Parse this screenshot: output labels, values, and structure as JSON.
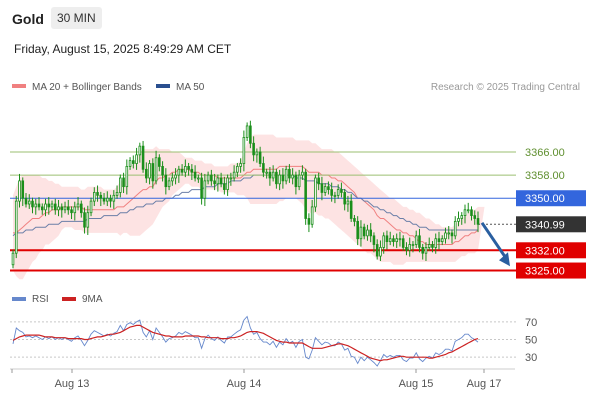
{
  "header": {
    "symbol": "Gold",
    "interval": "30 MIN",
    "datetime": "Friday, August 15, 2025 8:49:29 AM CET"
  },
  "legend": {
    "ma20": "MA 20 + Bollinger Bands",
    "ma50": "MA 50",
    "credit": "Research © 2025 Trading Central",
    "rsi": "RSI",
    "rsi_ma": "9MA"
  },
  "colors": {
    "bollinger_fill": "#fde3e3",
    "ma20": "#f08080",
    "ma50": "#6b7fa8",
    "resistance": "#9bbf72",
    "pivot": "#3366dd",
    "support": "#e00000",
    "candle": "#1b8f1b",
    "last_price_box": "#333333",
    "rsi": "#6688cc",
    "rsi_ma": "#cc2222",
    "arrow": "#2a5fa0"
  },
  "chart_data": [
    {
      "type": "candlestick",
      "title": "",
      "x_ticks": [
        "Aug 13",
        "Aug 14",
        "Aug 15",
        "Aug 17"
      ],
      "ylim": [
        3320,
        3385
      ],
      "levels": [
        {
          "name": "resistance-2",
          "value": 3366.0,
          "label": "3366.00",
          "style": "resistance"
        },
        {
          "name": "resistance-1",
          "value": 3358.0,
          "label": "3358.00",
          "style": "resistance"
        },
        {
          "name": "pivot",
          "value": 3350.0,
          "label": "3350.00",
          "style": "pivot"
        },
        {
          "name": "support-1",
          "value": 3332.0,
          "label": "3332.00",
          "style": "support"
        },
        {
          "name": "support-2",
          "value": 3325.0,
          "label": "3325.00",
          "style": "support"
        }
      ],
      "last_price": {
        "value": 3340.99,
        "label": "3340.99"
      },
      "forecast_arrow": {
        "from": 3341.5,
        "to": 3326.5
      },
      "closes": [
        3331,
        3349,
        3356,
        3350,
        3348,
        3349,
        3347,
        3348,
        3347,
        3346,
        3348,
        3347,
        3348,
        3346,
        3347,
        3346,
        3347,
        3346,
        3345,
        3347,
        3348,
        3345,
        3340,
        3345,
        3349,
        3352,
        3351,
        3350,
        3349,
        3350,
        3349,
        3351,
        3352,
        3357,
        3354,
        3361,
        3363,
        3362,
        3365,
        3368,
        3360,
        3357,
        3362,
        3356,
        3364,
        3361,
        3358,
        3354,
        3356,
        3357,
        3358,
        3360,
        3359,
        3361,
        3360,
        3359,
        3357,
        3357,
        3350,
        3356,
        3358,
        3356,
        3355,
        3357,
        3355,
        3353,
        3357,
        3357,
        3359,
        3361,
        3362,
        3371,
        3375,
        3369,
        3365,
        3366,
        3362,
        3359,
        3359,
        3357,
        3359,
        3355,
        3358,
        3356,
        3360,
        3357,
        3358,
        3354,
        3358,
        3359,
        3343,
        3341,
        3347,
        3357,
        3355,
        3352,
        3354,
        3353,
        3351,
        3351,
        3353,
        3352,
        3348,
        3349,
        3343,
        3342,
        3336,
        3340,
        3337,
        3339,
        3337,
        3334,
        3330,
        3333,
        3337,
        3335,
        3336,
        3335,
        3336,
        3336,
        3333,
        3332,
        3334,
        3334,
        3337,
        3333,
        3331,
        3333,
        3334,
        3333,
        3336,
        3335,
        3336,
        3338,
        3338,
        3337,
        3342,
        3343,
        3344,
        3346,
        3346,
        3344,
        3343,
        3341
      ],
      "ma20": [
        3338,
        3338,
        3339,
        3340,
        3341,
        3342,
        3343,
        3343,
        3343,
        3344,
        3345,
        3345,
        3346,
        3346,
        3346,
        3347,
        3347,
        3347,
        3347,
        3347,
        3347,
        3347,
        3346,
        3346,
        3346,
        3346,
        3346,
        3346,
        3346,
        3346,
        3346,
        3346,
        3347,
        3347,
        3347,
        3348,
        3349,
        3350,
        3351,
        3352,
        3353,
        3353,
        3354,
        3354,
        3356,
        3357,
        3357,
        3358,
        3358,
        3359,
        3359,
        3360,
        3360,
        3360,
        3360,
        3359,
        3359,
        3359,
        3358,
        3358,
        3358,
        3358,
        3358,
        3357,
        3357,
        3357,
        3357,
        3357,
        3357,
        3357,
        3357,
        3358,
        3359,
        3359,
        3360,
        3360,
        3360,
        3360,
        3360,
        3360,
        3360,
        3360,
        3361,
        3361,
        3361,
        3361,
        3361,
        3361,
        3361,
        3361,
        3360,
        3359,
        3359,
        3359,
        3359,
        3358,
        3358,
        3358,
        3357,
        3357,
        3356,
        3356,
        3355,
        3354,
        3353,
        3352,
        3350,
        3350,
        3349,
        3348,
        3347,
        3346,
        3344,
        3343,
        3343,
        3342,
        3341,
        3340,
        3339,
        3339,
        3338,
        3338,
        3337,
        3337,
        3336,
        3335,
        3335,
        3334,
        3334,
        3334,
        3334,
        3334,
        3334,
        3334,
        3334,
        3334,
        3335,
        3335,
        3336,
        3337,
        3337,
        3338,
        3338,
        3339
      ],
      "bb_upper": [
        3351,
        3354,
        3357,
        3358,
        3358,
        3358,
        3358,
        3358,
        3358,
        3357,
        3357,
        3356,
        3356,
        3355,
        3355,
        3354,
        3354,
        3354,
        3354,
        3354,
        3354,
        3353,
        3353,
        3354,
        3354,
        3354,
        3354,
        3354,
        3353,
        3353,
        3353,
        3353,
        3354,
        3356,
        3356,
        3359,
        3361,
        3362,
        3364,
        3366,
        3367,
        3367,
        3367,
        3367,
        3368,
        3367,
        3367,
        3367,
        3367,
        3366,
        3366,
        3366,
        3365,
        3364,
        3364,
        3364,
        3363,
        3363,
        3363,
        3362,
        3362,
        3362,
        3361,
        3361,
        3361,
        3361,
        3361,
        3362,
        3362,
        3362,
        3363,
        3366,
        3369,
        3371,
        3372,
        3372,
        3372,
        3372,
        3372,
        3372,
        3372,
        3371,
        3371,
        3371,
        3371,
        3371,
        3371,
        3370,
        3370,
        3370,
        3370,
        3370,
        3369,
        3369,
        3368,
        3367,
        3367,
        3367,
        3367,
        3366,
        3366,
        3365,
        3364,
        3363,
        3362,
        3361,
        3360,
        3359,
        3358,
        3357,
        3356,
        3355,
        3354,
        3353,
        3352,
        3351,
        3350,
        3350,
        3349,
        3348,
        3347,
        3347,
        3346,
        3346,
        3345,
        3345,
        3344,
        3343,
        3343,
        3342,
        3341,
        3341,
        3340,
        3340,
        3340,
        3340,
        3341,
        3342,
        3343,
        3344,
        3345,
        3346,
        3346,
        3347,
        3347,
        3347
      ],
      "bb_lower": [
        3325,
        3323,
        3322,
        3322,
        3324,
        3326,
        3328,
        3329,
        3331,
        3332,
        3334,
        3334,
        3335,
        3336,
        3337,
        3339,
        3340,
        3340,
        3340,
        3339,
        3339,
        3339,
        3338,
        3338,
        3338,
        3338,
        3338,
        3338,
        3338,
        3338,
        3338,
        3338,
        3338,
        3337,
        3338,
        3338,
        3337,
        3337,
        3337,
        3337,
        3338,
        3339,
        3340,
        3341,
        3343,
        3345,
        3347,
        3348,
        3349,
        3351,
        3352,
        3353,
        3354,
        3355,
        3355,
        3354,
        3354,
        3354,
        3353,
        3353,
        3353,
        3353,
        3353,
        3353,
        3352,
        3352,
        3352,
        3352,
        3352,
        3351,
        3351,
        3351,
        3350,
        3348,
        3348,
        3348,
        3348,
        3348,
        3348,
        3348,
        3348,
        3348,
        3349,
        3349,
        3350,
        3350,
        3350,
        3350,
        3349,
        3348,
        3346,
        3345,
        3345,
        3345,
        3344,
        3344,
        3343,
        3343,
        3342,
        3341,
        3340,
        3339,
        3338,
        3337,
        3336,
        3335,
        3334,
        3333,
        3332,
        3331,
        3331,
        3330,
        3329,
        3328,
        3328,
        3328,
        3328,
        3327,
        3327,
        3327,
        3327,
        3328,
        3328,
        3328,
        3328,
        3328,
        3328,
        3328,
        3328,
        3328,
        3328,
        3328,
        3328,
        3328,
        3328,
        3328,
        3328,
        3329,
        3330,
        3330,
        3331,
        3331,
        3331,
        3332
      ],
      "ma50": [
        3337,
        3338,
        3338,
        3338,
        3339,
        3339,
        3339,
        3340,
        3340,
        3340,
        3340,
        3341,
        3341,
        3341,
        3341,
        3342,
        3342,
        3342,
        3342,
        3342,
        3342,
        3342,
        3342,
        3343,
        3343,
        3343,
        3343,
        3343,
        3344,
        3344,
        3344,
        3344,
        3344,
        3345,
        3345,
        3345,
        3346,
        3346,
        3347,
        3347,
        3347,
        3348,
        3348,
        3348,
        3349,
        3349,
        3349,
        3350,
        3350,
        3350,
        3351,
        3351,
        3352,
        3352,
        3352,
        3353,
        3353,
        3353,
        3353,
        3354,
        3354,
        3354,
        3354,
        3355,
        3355,
        3355,
        3355,
        3356,
        3356,
        3356,
        3356,
        3357,
        3357,
        3357,
        3358,
        3358,
        3358,
        3358,
        3358,
        3358,
        3358,
        3358,
        3358,
        3358,
        3358,
        3358,
        3358,
        3357,
        3357,
        3357,
        3356,
        3356,
        3356,
        3356,
        3355,
        3355,
        3355,
        3355,
        3354,
        3354,
        3354,
        3353,
        3353,
        3352,
        3352,
        3351,
        3350,
        3350,
        3349,
        3349,
        3348,
        3347,
        3347,
        3346,
        3346,
        3345,
        3345,
        3344,
        3344,
        3343,
        3343,
        3342,
        3342,
        3341,
        3341,
        3340,
        3340,
        3340,
        3339,
        3339,
        3339,
        3339,
        3339,
        3339,
        3339,
        3339,
        3339,
        3339,
        3339,
        3339,
        3339,
        3339,
        3339,
        3339
      ]
    },
    {
      "type": "line",
      "title": "",
      "y_ticks": [
        70,
        50,
        30
      ],
      "ylim": [
        20,
        80
      ],
      "series": [
        {
          "name": "RSI",
          "values": [
            45,
            63,
            60,
            58,
            53,
            54,
            52,
            54,
            52,
            50,
            53,
            51,
            53,
            50,
            52,
            50,
            52,
            50,
            48,
            52,
            54,
            49,
            43,
            49,
            56,
            60,
            58,
            56,
            54,
            56,
            54,
            57,
            59,
            66,
            60,
            67,
            69,
            67,
            70,
            72,
            58,
            53,
            60,
            50,
            63,
            58,
            53,
            47,
            51,
            52,
            54,
            58,
            56,
            59,
            57,
            55,
            52,
            52,
            40,
            51,
            55,
            51,
            49,
            53,
            49,
            46,
            53,
            53,
            56,
            59,
            61,
            72,
            76,
            63,
            56,
            58,
            51,
            47,
            47,
            44,
            48,
            41,
            47,
            44,
            51,
            46,
            48,
            41,
            48,
            50,
            30,
            28,
            38,
            52,
            48,
            44,
            47,
            46,
            43,
            43,
            47,
            45,
            38,
            40,
            31,
            30,
            23,
            30,
            26,
            30,
            27,
            24,
            20,
            26,
            33,
            30,
            32,
            30,
            32,
            32,
            27,
            25,
            29,
            29,
            35,
            28,
            25,
            29,
            31,
            29,
            35,
            33,
            35,
            39,
            39,
            37,
            48,
            50,
            52,
            56,
            56,
            52,
            50,
            47
          ]
        },
        {
          "name": "9MA",
          "values": [
            49,
            51,
            53,
            54,
            55,
            55,
            55,
            55,
            55,
            54,
            53,
            53,
            53,
            52,
            52,
            52,
            52,
            51,
            51,
            51,
            51,
            51,
            50,
            50,
            51,
            52,
            53,
            53,
            54,
            55,
            56,
            56,
            57,
            58,
            60,
            62,
            64,
            65,
            66,
            66,
            64,
            62,
            60,
            58,
            57,
            56,
            55,
            54,
            54,
            53,
            53,
            53,
            53,
            54,
            54,
            54,
            54,
            54,
            53,
            53,
            52,
            52,
            52,
            52,
            51,
            51,
            51,
            52,
            52,
            53,
            54,
            56,
            58,
            59,
            59,
            59,
            58,
            57,
            55,
            53,
            51,
            49,
            48,
            47,
            47,
            46,
            46,
            46,
            46,
            46,
            44,
            42,
            40,
            40,
            40,
            40,
            41,
            42,
            43,
            44,
            45,
            45,
            44,
            43,
            41,
            39,
            37,
            35,
            33,
            31,
            29,
            28,
            27,
            26,
            27,
            27,
            28,
            29,
            30,
            31,
            31,
            30,
            30,
            30,
            30,
            30,
            30,
            30,
            29,
            29,
            30,
            31,
            32,
            33,
            35,
            36,
            38,
            40,
            42,
            44,
            46,
            48,
            50,
            51
          ]
        }
      ]
    }
  ]
}
